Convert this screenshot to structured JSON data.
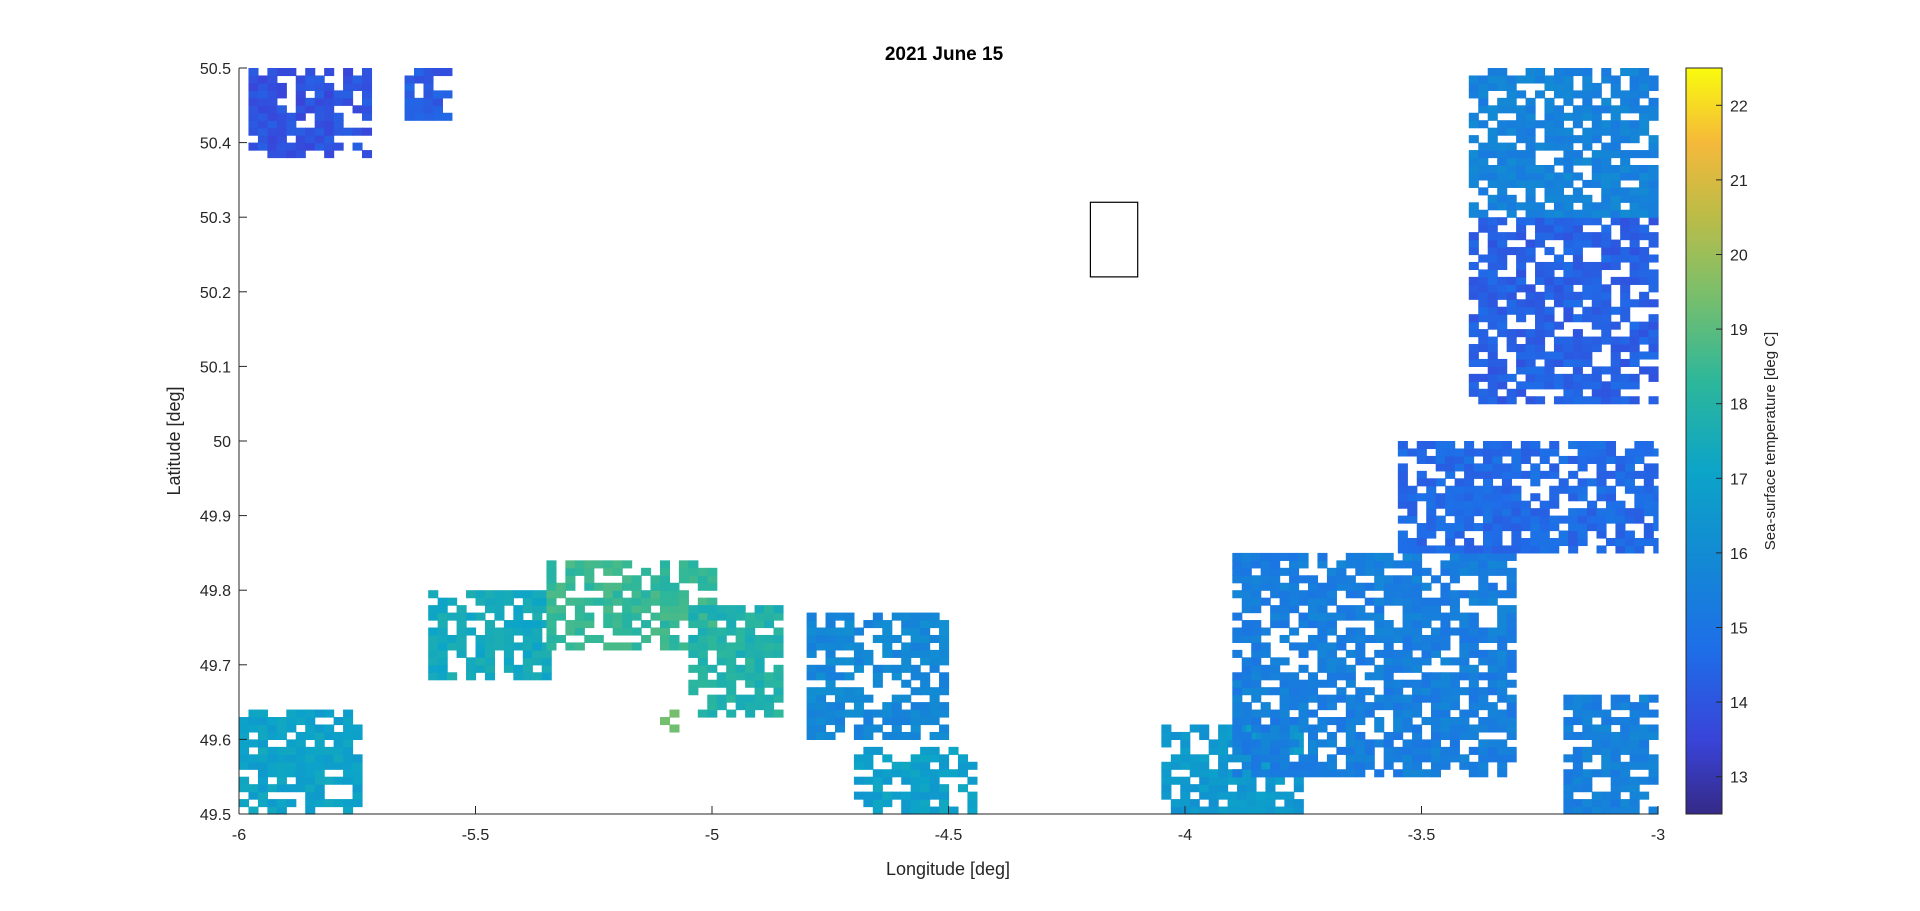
{
  "chart_data": {
    "type": "heatmap",
    "title": "2021 June 15",
    "xlabel": "Longitude [deg]",
    "ylabel": "Latitude [deg]",
    "xlim": [
      -6,
      -3
    ],
    "ylim": [
      49.5,
      50.5
    ],
    "x_ticks": [
      -6,
      -5.5,
      -5,
      -4.5,
      -4,
      -3.5,
      -3
    ],
    "x_tick_labels": [
      "-6",
      "-5.5",
      "-5",
      "-4.5",
      "-4",
      "-3.5",
      "-3"
    ],
    "y_ticks": [
      49.5,
      49.6,
      49.7,
      49.8,
      49.9,
      50,
      50.1,
      50.2,
      50.3,
      50.4,
      50.5
    ],
    "y_tick_labels": [
      "49.5",
      "49.6",
      "49.7",
      "49.8",
      "49.9",
      "50",
      "50.1",
      "50.2",
      "50.3",
      "50.4",
      "50.5"
    ],
    "grid": false,
    "colormap": "parula",
    "colorbar": {
      "label": "Sea-surface temperature [deg C]",
      "clim": [
        12.5,
        22.5
      ],
      "ticks": [
        13,
        14,
        15,
        16,
        17,
        18,
        19,
        20,
        21,
        22
      ],
      "tick_labels": [
        "13",
        "14",
        "15",
        "16",
        "17",
        "18",
        "19",
        "20",
        "21",
        "22"
      ]
    },
    "missing_data": "white",
    "box_annotation": {
      "lon": [
        -4.2,
        -4.1
      ],
      "lat": [
        50.22,
        50.32
      ]
    },
    "data_patches": [
      {
        "name": "north-west-cluster",
        "lon": [
          -5.98,
          -5.72
        ],
        "lat": [
          50.38,
          50.5
        ],
        "temp": 13.9
      },
      {
        "name": "north-dots",
        "lon": [
          -5.65,
          -5.55
        ],
        "lat": [
          50.43,
          50.5
        ],
        "temp": 14.2
      },
      {
        "name": "central-plume-west",
        "lon": [
          -5.6,
          -5.35
        ],
        "lat": [
          49.68,
          49.8
        ],
        "temp": 17.4
      },
      {
        "name": "central-plume-core",
        "lon": [
          -5.35,
          -5.0
        ],
        "lat": [
          49.72,
          49.84
        ],
        "temp": 18.4
      },
      {
        "name": "central-plume-east",
        "lon": [
          -5.05,
          -4.85
        ],
        "lat": [
          49.63,
          49.78
        ],
        "temp": 17.9
      },
      {
        "name": "warm-spot",
        "lon": [
          -5.11,
          -5.07
        ],
        "lat": [
          49.61,
          49.65
        ],
        "temp": 19.3
      },
      {
        "name": "mid-patch",
        "lon": [
          -4.8,
          -4.5
        ],
        "lat": [
          49.6,
          49.77
        ],
        "temp": 15.8
      },
      {
        "name": "south-west-coast",
        "lon": [
          -6.0,
          -5.75
        ],
        "lat": [
          49.5,
          49.64
        ],
        "temp": 17.0
      },
      {
        "name": "south-centre",
        "lon": [
          -4.7,
          -4.45
        ],
        "lat": [
          49.5,
          49.59
        ],
        "temp": 16.9
      },
      {
        "name": "eastern-front-south",
        "lon": [
          -4.05,
          -3.75
        ],
        "lat": [
          49.5,
          49.62
        ],
        "temp": 16.6
      },
      {
        "name": "eastern-front-mid",
        "lon": [
          -3.9,
          -3.3
        ],
        "lat": [
          49.55,
          49.85
        ],
        "temp": 15.4
      },
      {
        "name": "eastern-front-north",
        "lon": [
          -3.55,
          -3.0
        ],
        "lat": [
          49.85,
          50.0
        ],
        "temp": 14.6
      },
      {
        "name": "north-east-blue",
        "lon": [
          -3.4,
          -3.0
        ],
        "lat": [
          50.05,
          50.3
        ],
        "temp": 14.3
      },
      {
        "name": "north-east-top",
        "lon": [
          -3.4,
          -3.0
        ],
        "lat": [
          50.3,
          50.5
        ],
        "temp": 15.6
      },
      {
        "name": "south-east",
        "lon": [
          -3.2,
          -3.0
        ],
        "lat": [
          49.5,
          49.66
        ],
        "temp": 15.5
      }
    ]
  }
}
